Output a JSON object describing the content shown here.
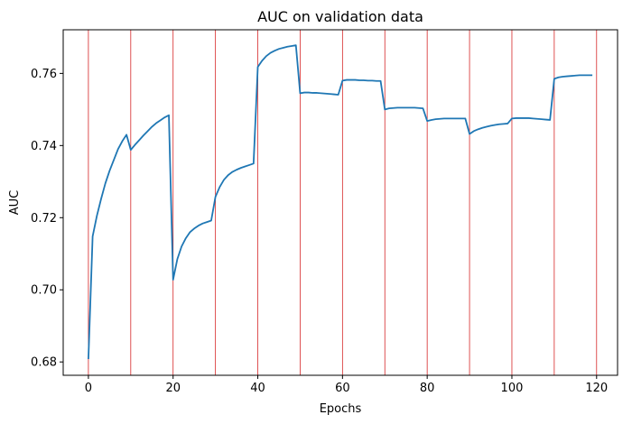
{
  "chart_data": {
    "type": "line",
    "title": "AUC on validation data",
    "xlabel": "Epochs",
    "ylabel": "AUC",
    "xlim": [
      -5.95,
      124.95
    ],
    "ylim": [
      0.6763,
      0.7721
    ],
    "xticks": [
      0,
      20,
      40,
      60,
      80,
      100,
      120
    ],
    "yticks": [
      0.68,
      0.7,
      0.72,
      0.74,
      0.76
    ],
    "grid": false,
    "line_color": "#1f77b4",
    "vline_color": "#d62728",
    "vlines": [
      0,
      10,
      20,
      30,
      40,
      50,
      60,
      70,
      80,
      90,
      100,
      110,
      120
    ],
    "series": [
      {
        "x": [
          0,
          1,
          2,
          3,
          4,
          5,
          6,
          7,
          8,
          9,
          10,
          11,
          12,
          13,
          14,
          15,
          16,
          17,
          18,
          19,
          20,
          21,
          22,
          23,
          24,
          25,
          26,
          27,
          28,
          29,
          30,
          31,
          32,
          33,
          34,
          35,
          36,
          37,
          38,
          39,
          40,
          41,
          42,
          43,
          44,
          45,
          46,
          47,
          48,
          49,
          50,
          51,
          52,
          53,
          54,
          55,
          56,
          57,
          58,
          59,
          60,
          61,
          62,
          63,
          64,
          65,
          66,
          67,
          68,
          69,
          70,
          71,
          72,
          73,
          74,
          75,
          76,
          77,
          78,
          79,
          80,
          81,
          82,
          83,
          84,
          85,
          86,
          87,
          88,
          89,
          90,
          91,
          92,
          93,
          94,
          95,
          96,
          97,
          98,
          99,
          100,
          101,
          102,
          103,
          104,
          105,
          106,
          107,
          108,
          109,
          110,
          111,
          112,
          113,
          114,
          115,
          116,
          117,
          118,
          119
        ],
        "y": [
          0.6808,
          0.7148,
          0.7205,
          0.7252,
          0.7295,
          0.733,
          0.736,
          0.739,
          0.7412,
          0.743,
          0.7388,
          0.7402,
          0.7415,
          0.7428,
          0.744,
          0.7452,
          0.7462,
          0.747,
          0.7478,
          0.7484,
          0.7028,
          0.7085,
          0.712,
          0.7143,
          0.716,
          0.717,
          0.7178,
          0.7184,
          0.7188,
          0.7192,
          0.7258,
          0.7285,
          0.7305,
          0.7318,
          0.7327,
          0.7333,
          0.7338,
          0.7342,
          0.7346,
          0.735,
          0.7618,
          0.7635,
          0.7648,
          0.7657,
          0.7663,
          0.7668,
          0.7671,
          0.7674,
          0.7676,
          0.7678,
          0.7545,
          0.7547,
          0.7547,
          0.7546,
          0.7546,
          0.7545,
          0.7544,
          0.7543,
          0.7542,
          0.7541,
          0.758,
          0.7582,
          0.7582,
          0.7582,
          0.7581,
          0.7581,
          0.758,
          0.758,
          0.7579,
          0.7579,
          0.75,
          0.7503,
          0.7504,
          0.7505,
          0.7505,
          0.7505,
          0.7505,
          0.7505,
          0.7504,
          0.7503,
          0.7468,
          0.7471,
          0.7473,
          0.7474,
          0.7475,
          0.7475,
          0.7475,
          0.7475,
          0.7475,
          0.7475,
          0.7432,
          0.744,
          0.7445,
          0.7449,
          0.7452,
          0.7455,
          0.7457,
          0.7459,
          0.746,
          0.7461,
          0.7475,
          0.7476,
          0.7476,
          0.7476,
          0.7476,
          0.7475,
          0.7474,
          0.7473,
          0.7472,
          0.7471,
          0.7585,
          0.7589,
          0.7591,
          0.7592,
          0.7593,
          0.7594,
          0.7595,
          0.7595,
          0.7595,
          0.7595
        ]
      }
    ]
  }
}
